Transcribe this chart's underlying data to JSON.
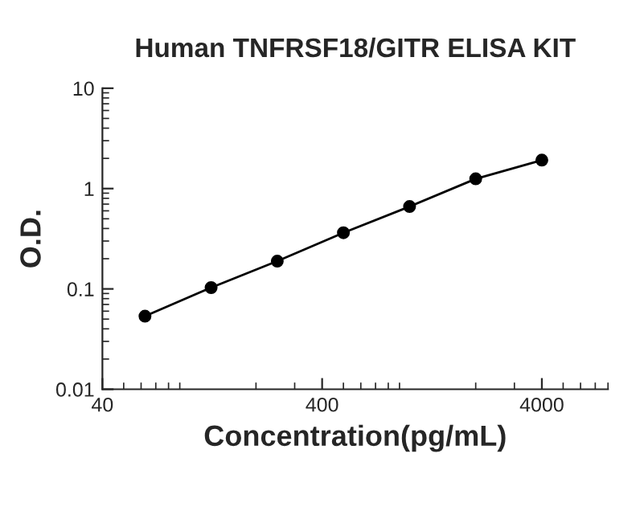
{
  "chart_data": {
    "type": "line",
    "title": "Human TNFRSF18/GITR ELISA KIT",
    "xlabel": "Concentration(pg/mL)",
    "ylabel": "O.D.",
    "x": [
      62.5,
      125,
      250,
      500,
      1000,
      2000,
      4000
    ],
    "series": [
      {
        "color": "#000000",
        "values": [
          0.0535,
          0.103,
          0.189,
          0.363,
          0.662,
          1.25,
          1.92
        ]
      }
    ],
    "log": "xy",
    "xlim": [
      40,
      8000
    ],
    "ylim": [
      0.01,
      10
    ],
    "xticks": [
      40,
      400,
      4000
    ],
    "yticks": [
      0.01,
      0.1,
      1,
      10
    ],
    "marker": "circle",
    "line_style": "solid",
    "grid": false,
    "legend": false
  }
}
